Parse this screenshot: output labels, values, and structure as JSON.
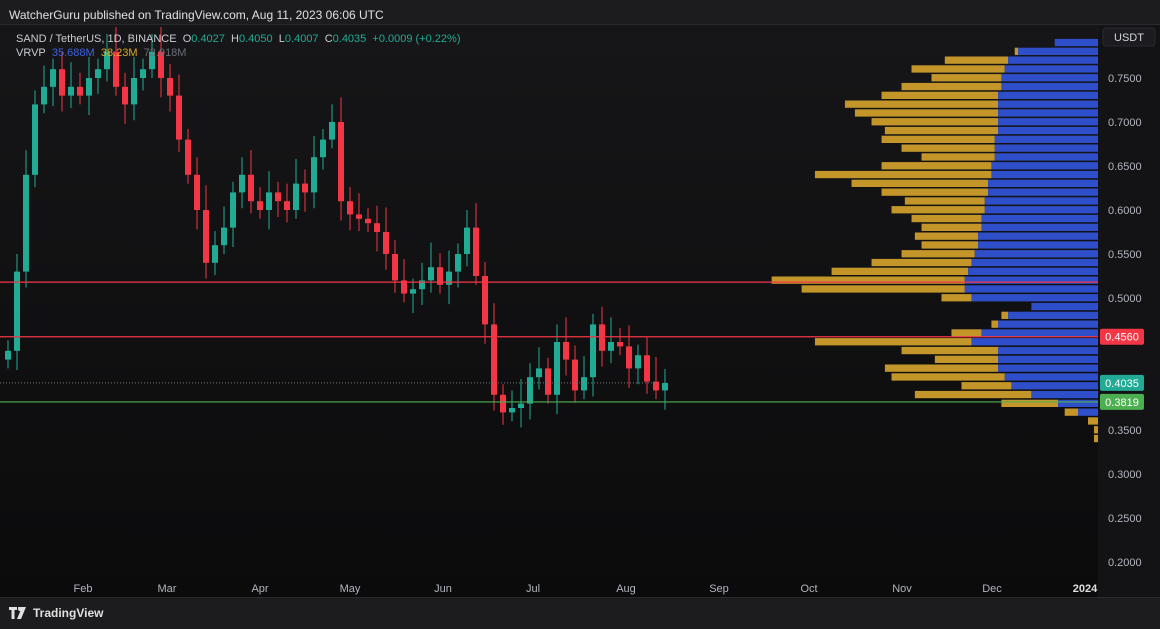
{
  "header": {
    "published": "WatcherGuru published on TradingView.com, Aug 11, 2023 06:06 UTC"
  },
  "legend": {
    "symbol": "SAND / TetherUS, 1D, BINANCE",
    "o_label": "O",
    "o": "0.4027",
    "h_label": "H",
    "h": "0.4050",
    "l_label": "L",
    "l": "0.4007",
    "c_label": "C",
    "c": "0.4035",
    "change": "+0.0009 (+0.22%)",
    "vrvp_label": "VRVP",
    "vrvp_up": "35.688M",
    "vrvp_down": "38.23M",
    "vrvp_total": "73.918M"
  },
  "footer": {
    "brand": "TradingView"
  },
  "colors": {
    "up": "#22ab94",
    "down": "#f23645",
    "vp_up": "#2e4fc9",
    "vp_down": "#c4962a",
    "line_red": "#f23645",
    "line_green": "#4caf50"
  },
  "chart_data": {
    "type": "candlestick",
    "currency": "USDT",
    "ylim": [
      0.18,
      0.8
    ],
    "y_ticks": [
      "0.7500",
      "0.7000",
      "0.6500",
      "0.6000",
      "0.5500",
      "0.5000",
      "0.3500",
      "0.3000",
      "0.2500",
      "0.2000"
    ],
    "x_ticks": [
      {
        "label": "Feb",
        "day": 31
      },
      {
        "label": "Mar",
        "day": 59
      },
      {
        "label": "Apr",
        "day": 90
      },
      {
        "label": "May",
        "day": 120
      },
      {
        "label": "Jun",
        "day": 151
      },
      {
        "label": "Jul",
        "day": 181
      },
      {
        "label": "Aug",
        "day": 212
      },
      {
        "label": "Sep",
        "day": 243
      },
      {
        "label": "Oct",
        "day": 273
      },
      {
        "label": "Nov",
        "day": 304
      },
      {
        "label": "Dec",
        "day": 334
      },
      {
        "label": "2024",
        "day": 365
      }
    ],
    "closes_start_day": 6,
    "closes_step_days": 3,
    "closes": [
      0.44,
      0.53,
      0.64,
      0.72,
      0.74,
      0.76,
      0.73,
      0.74,
      0.73,
      0.75,
      0.76,
      0.78,
      0.74,
      0.72,
      0.75,
      0.76,
      0.78,
      0.75,
      0.73,
      0.68,
      0.64,
      0.6,
      0.54,
      0.56,
      0.58,
      0.62,
      0.64,
      0.61,
      0.6,
      0.62,
      0.61,
      0.6,
      0.63,
      0.62,
      0.66,
      0.68,
      0.7,
      0.61,
      0.595,
      0.59,
      0.585,
      0.575,
      0.55,
      0.52,
      0.505,
      0.51,
      0.52,
      0.535,
      0.515,
      0.53,
      0.55,
      0.58,
      0.525,
      0.47,
      0.39,
      0.37,
      0.375,
      0.38,
      0.41,
      0.42,
      0.39,
      0.45,
      0.43,
      0.395,
      0.41,
      0.47,
      0.44,
      0.45,
      0.445,
      0.42,
      0.435,
      0.405,
      0.395,
      0.4035
    ],
    "lines": [
      {
        "price": 0.518,
        "color": "red"
      },
      {
        "price": 0.456,
        "color": "red",
        "label": "0.4560"
      },
      {
        "price": 0.4035,
        "color": "dotted",
        "label": "0.4035"
      },
      {
        "price": 0.3819,
        "color": "green",
        "label": "0.3819"
      }
    ],
    "volume_profile": {
      "prices": [
        0.79,
        0.78,
        0.77,
        0.76,
        0.75,
        0.74,
        0.73,
        0.72,
        0.71,
        0.7,
        0.69,
        0.68,
        0.67,
        0.66,
        0.65,
        0.64,
        0.63,
        0.62,
        0.61,
        0.6,
        0.59,
        0.58,
        0.57,
        0.56,
        0.55,
        0.54,
        0.53,
        0.52,
        0.51,
        0.5,
        0.49,
        0.48,
        0.47,
        0.46,
        0.45,
        0.44,
        0.43,
        0.42,
        0.41,
        0.4,
        0.39,
        0.38,
        0.37,
        0.36,
        0.35,
        0.34
      ],
      "total": [
        0.13,
        0.25,
        0.46,
        0.56,
        0.5,
        0.59,
        0.65,
        0.76,
        0.73,
        0.68,
        0.64,
        0.65,
        0.59,
        0.53,
        0.65,
        0.85,
        0.74,
        0.65,
        0.58,
        0.62,
        0.56,
        0.53,
        0.55,
        0.53,
        0.59,
        0.68,
        0.8,
        0.98,
        0.89,
        0.47,
        0.2,
        0.29,
        0.32,
        0.44,
        0.85,
        0.59,
        0.49,
        0.64,
        0.62,
        0.41,
        0.55,
        0.29,
        0.1,
        0.03,
        0.012,
        0.012
      ],
      "up": [
        0.13,
        0.24,
        0.27,
        0.28,
        0.29,
        0.29,
        0.3,
        0.3,
        0.3,
        0.3,
        0.3,
        0.31,
        0.31,
        0.31,
        0.32,
        0.32,
        0.33,
        0.33,
        0.34,
        0.34,
        0.35,
        0.35,
        0.36,
        0.36,
        0.37,
        0.38,
        0.39,
        0.4,
        0.4,
        0.38,
        0.2,
        0.27,
        0.3,
        0.35,
        0.38,
        0.3,
        0.3,
        0.3,
        0.28,
        0.26,
        0.2,
        0.12,
        0.06,
        0.0,
        0.0,
        0.0
      ]
    }
  }
}
